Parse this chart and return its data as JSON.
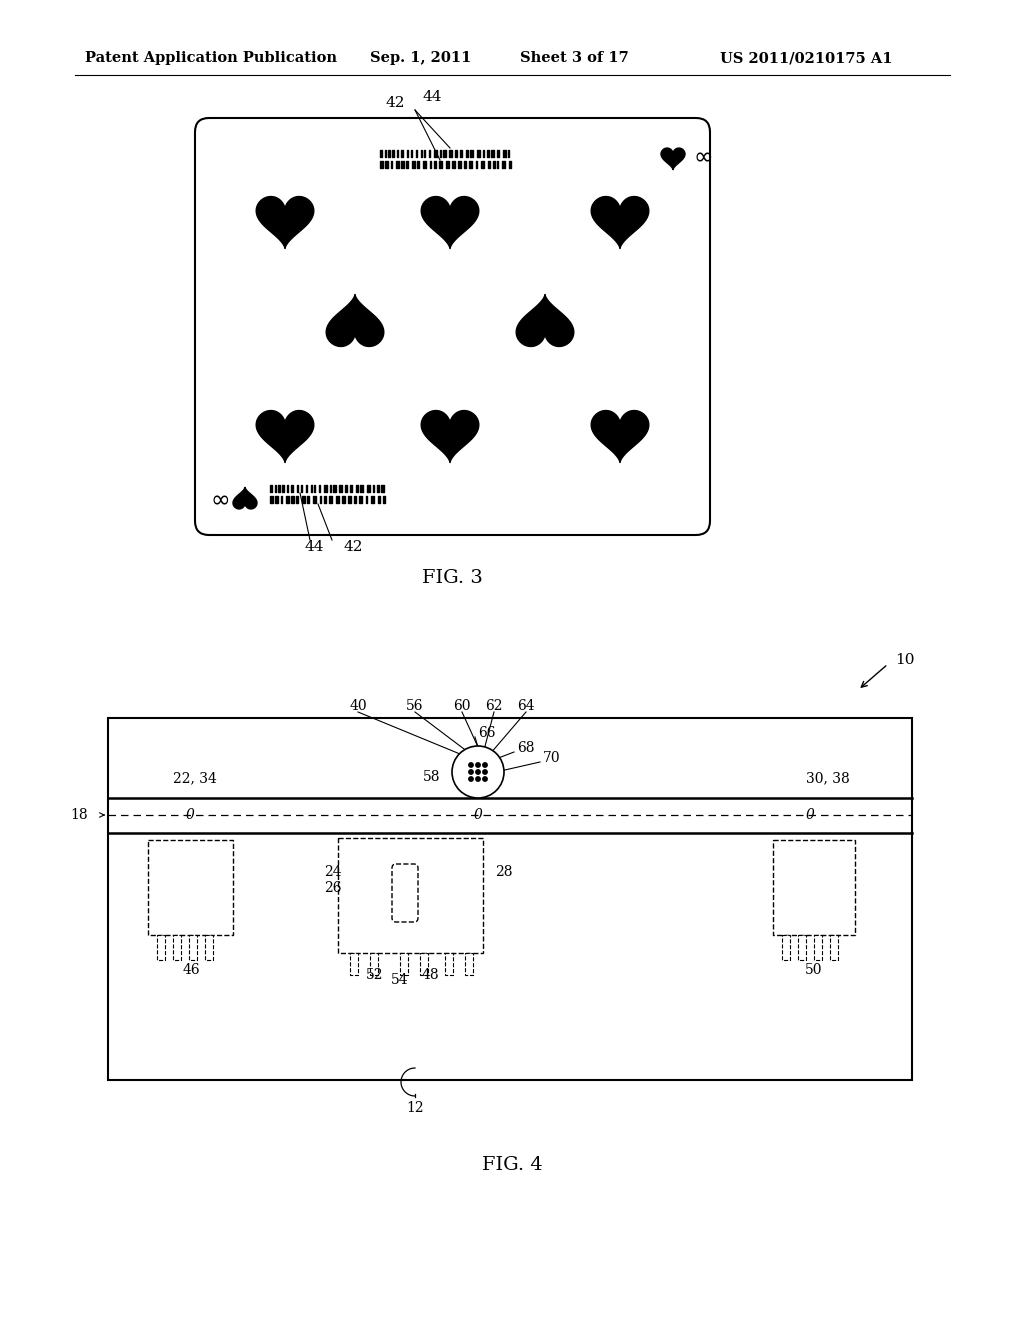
{
  "bg_color": "#ffffff",
  "header_text": "Patent Application Publication",
  "header_date": "Sep. 1, 2011",
  "header_sheet": "Sheet 3 of 17",
  "header_patent": "US 2011/0210175 A1",
  "fig3_label": "FIG. 3",
  "fig4_label": "FIG. 4",
  "text_color": "#000000"
}
